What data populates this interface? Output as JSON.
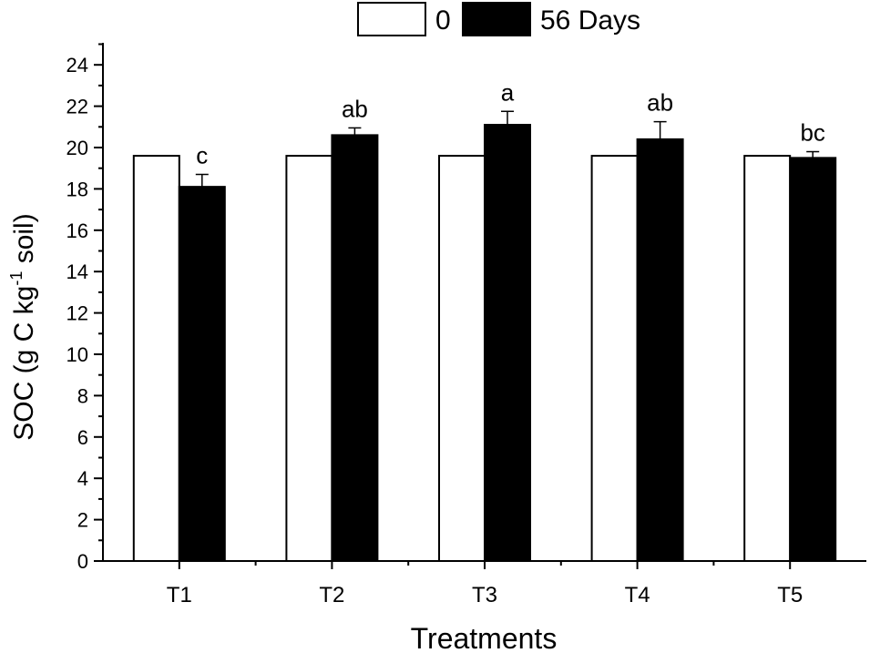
{
  "chart_data": {
    "type": "bar",
    "categories": [
      "T1",
      "T2",
      "T3",
      "T4",
      "T5"
    ],
    "series": [
      {
        "name": "0",
        "values": [
          19.6,
          19.6,
          19.6,
          19.6,
          19.6
        ],
        "errors": [
          0,
          0,
          0,
          0,
          0
        ],
        "color": "#ffffff"
      },
      {
        "name": "56 Days",
        "values": [
          18.1,
          20.6,
          21.1,
          20.4,
          19.5
        ],
        "errors": [
          0.6,
          0.35,
          0.65,
          0.85,
          0.3
        ],
        "color": "#000000"
      }
    ],
    "annotations": [
      "c",
      "ab",
      "a",
      "ab",
      "bc"
    ],
    "xlabel": "Treatments",
    "ylabel_main": "SOC (g C kg",
    "ylabel_sup": "-1",
    "ylabel_tail": " soil)",
    "ylim": [
      0,
      25
    ],
    "yticks": [
      0,
      2,
      4,
      6,
      8,
      10,
      12,
      14,
      16,
      18,
      20,
      22,
      24
    ],
    "grid": false,
    "legend_position": "top"
  }
}
